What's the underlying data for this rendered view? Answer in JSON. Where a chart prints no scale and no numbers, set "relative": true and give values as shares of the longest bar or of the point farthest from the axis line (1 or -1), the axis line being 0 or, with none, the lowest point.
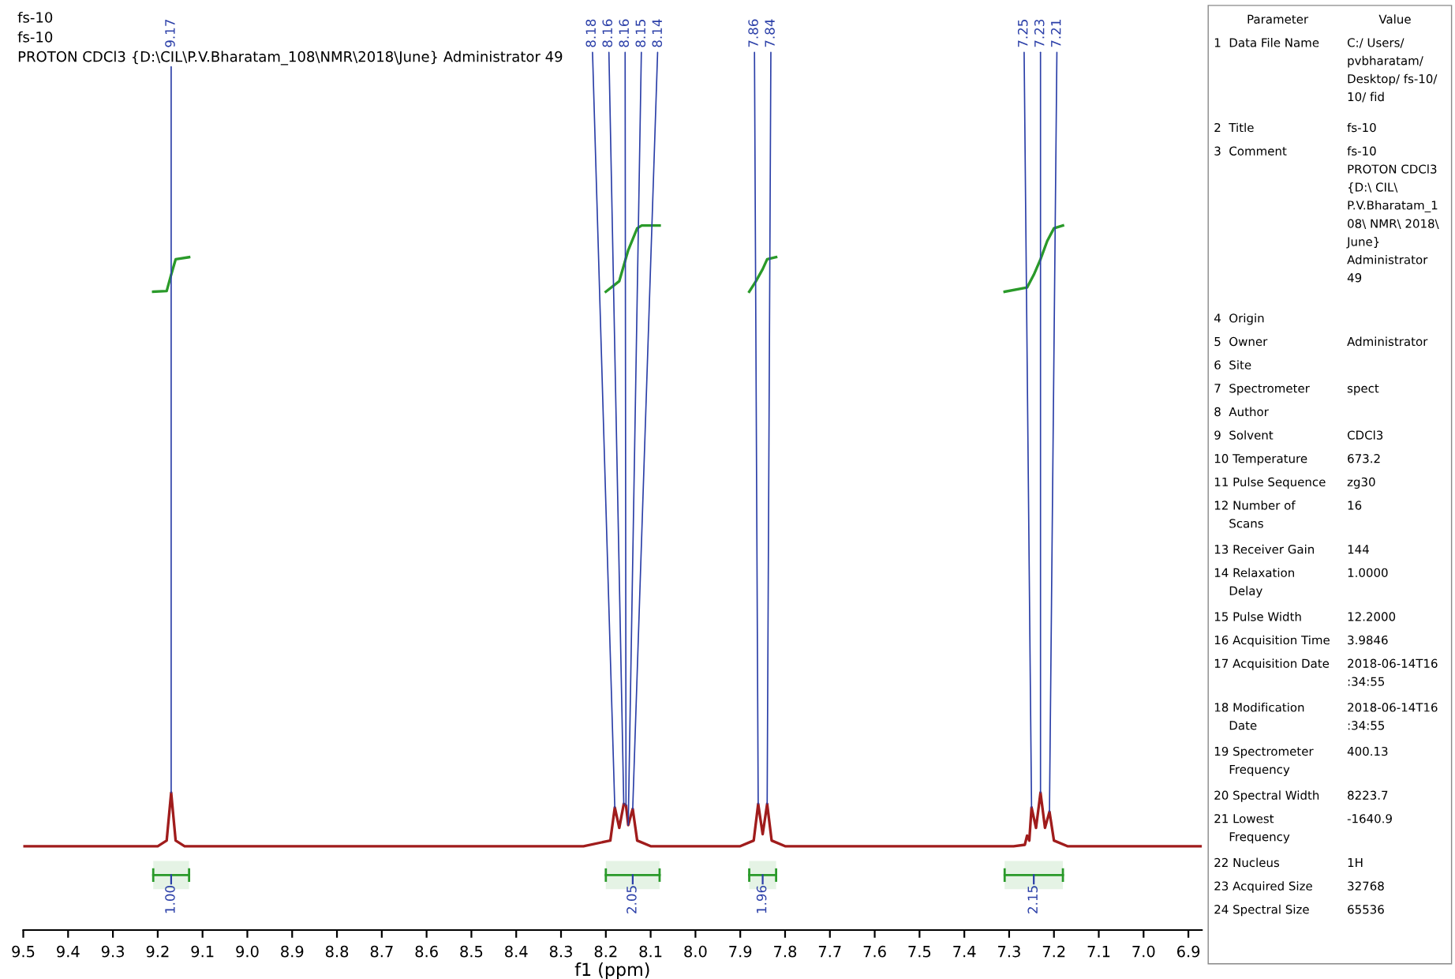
{
  "chart_data": [
    {
      "type": "line",
      "title": "fs-10",
      "subtitle": "fs-10",
      "xlabel": "f1 (ppm)",
      "relative": true,
      "xlim": [
        9.5,
        6.87
      ],
      "xticks": [
        9.5,
        9.4,
        9.3,
        9.2,
        9.1,
        {
          "value": 9.0,
          "label": "9.0"
        },
        8.9,
        8.8,
        8.7,
        8.6,
        8.5,
        8.4,
        8.3,
        8.2,
        8.1,
        {
          "value": 8.0,
          "label": "8.0"
        },
        7.9,
        7.8,
        7.7,
        7.6,
        7.5,
        7.4,
        7.3,
        7.2,
        7.1,
        {
          "value": 7.0,
          "label": "7.0"
        },
        6.9
      ],
      "grid": false,
      "tick_labels": "x",
      "bands": [
        {
          "axis": "x",
          "from": 9.21,
          "to": 9.13,
          "label": "1.00",
          "color": "#2a9a2a"
        },
        {
          "axis": "x",
          "from": 8.2,
          "to": 8.08,
          "label": "2.05",
          "color": "#2a9a2a"
        },
        {
          "axis": "x",
          "from": 7.88,
          "to": 7.82,
          "label": "1.96",
          "color": "#2a9a2a"
        },
        {
          "axis": "x",
          "from": 7.31,
          "to": 7.18,
          "label": "2.15",
          "color": "#2a9a2a"
        }
      ],
      "series": [
        {
          "color": "#a01c1c",
          "x": [
            9.5,
            9.2,
            9.18,
            9.17,
            9.16,
            9.14,
            8.25,
            8.19,
            8.18,
            8.17,
            8.16,
            8.155,
            8.15,
            8.14,
            8.13,
            8.1,
            7.9,
            7.87,
            7.86,
            7.85,
            7.84,
            7.83,
            7.8,
            7.29,
            7.265,
            7.26,
            7.255,
            7.25,
            7.24,
            7.23,
            7.22,
            7.21,
            7.2,
            7.17,
            6.87
          ],
          "values": [
            0.119,
            0.119,
            0.127,
            0.195,
            0.127,
            0.119,
            0.119,
            0.127,
            0.174,
            0.145,
            0.179,
            0.177,
            0.149,
            0.172,
            0.127,
            0.119,
            0.119,
            0.127,
            0.179,
            0.136,
            0.179,
            0.127,
            0.119,
            0.119,
            0.121,
            0.134,
            0.127,
            0.174,
            0.145,
            0.195,
            0.145,
            0.168,
            0.127,
            0.119,
            0.119
          ]
        },
        {
          "color": "#2a9a2a",
          "x": [
            9.21,
            9.18,
            9.17,
            9.16,
            9.13,
            9.0,
            8.2,
            8.17,
            8.15,
            8.13,
            8.12,
            8.08,
            8.0,
            7.88,
            7.865,
            7.85,
            7.84,
            7.82,
            7.5,
            7.31,
            7.26,
            7.245,
            7.23,
            7.215,
            7.2,
            7.18
          ],
          "values": [
            0.906,
            0.907,
            0.93,
            0.952,
            0.955,
            null,
            0.906,
            0.921,
            0.965,
            0.996,
            1.0,
            1.0,
            null,
            0.906,
            0.921,
            0.938,
            0.952,
            0.955,
            null,
            0.906,
            0.912,
            0.93,
            0.952,
            0.978,
            0.996,
            1.0
          ]
        }
      ],
      "annotations": [
        "PROTON CDCl3 {D:\\CIL\\P.V.Bharatam_108\\NMR\\2018\\June} Administrator 49",
        {
          "text": "9.17",
          "x": 9.17,
          "y": 0.195
        },
        {
          "text": "8.18",
          "x": 8.18,
          "y": 0.174
        },
        {
          "text": "8.16",
          "x": 8.16,
          "y": 0.179
        },
        {
          "text": "8.16",
          "x": 8.155,
          "y": 0.177
        },
        {
          "text": "8.15",
          "x": 8.15,
          "y": 0.149
        },
        {
          "text": "8.14",
          "x": 8.14,
          "y": 0.172
        },
        {
          "text": "7.86",
          "x": 7.86,
          "y": 0.179
        },
        {
          "text": "7.84",
          "x": 7.84,
          "y": 0.179
        },
        {
          "text": "7.25",
          "x": 7.25,
          "y": 0.174
        },
        {
          "text": "7.23",
          "x": 7.23,
          "y": 0.195
        },
        {
          "text": "7.21",
          "x": 7.21,
          "y": 0.168
        }
      ]
    },
    {
      "type": "other",
      "annotations": [
        "\tParameter\tValue",
        "1\tData File Name\tC:/ Users/\npvbharatam/\nDesktop/ fs-10/\n10/ fid",
        "2\tTitle\tfs-10",
        "3\tComment\tfs-10\nPROTON CDCl3\n{D:\\ CIL\\\nP.V.Bharatam_1\n08\\ NMR\\ 2018\\\nJune}\nAdministrator\n49",
        "4\tOrigin\t",
        "5\tOwner\tAdministrator",
        "6\tSite\t",
        "7\tSpectrometer\tspect",
        "8\tAuthor\t",
        "9\tSolvent\tCDCl3",
        "10\tTemperature\t673.2",
        "11\tPulse Sequence\tzg30",
        "12\tNumber of\nScans\t16",
        "13\tReceiver Gain\t144",
        "14\tRelaxation\nDelay\t1.0000",
        "15\tPulse Width\t12.2000",
        "16\tAcquisition Time\t3.9846",
        "17\tAcquisition Date\t2018-06-14T16\n:34:55",
        "18\tModification\nDate\t2018-06-14T16\n:34:55",
        "19\tSpectrometer\nFrequency\t400.13",
        "20\tSpectral Width\t8223.7",
        "21\tLowest\nFrequency\t-1640.9",
        "22\tNucleus\t1H",
        "23\tAcquired Size\t32768",
        "24\tSpectral Size\t65536"
      ]
    }
  ]
}
